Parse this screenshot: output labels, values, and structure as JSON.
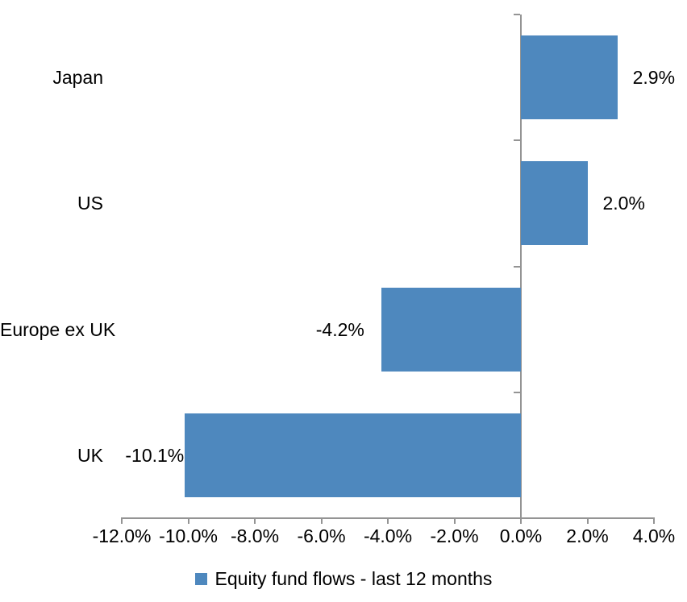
{
  "chart_data": {
    "type": "bar",
    "orientation": "horizontal",
    "categories": [
      "Japan",
      "US",
      "Europe ex UK",
      "UK"
    ],
    "values": [
      2.9,
      2.0,
      -4.2,
      -10.1
    ],
    "data_labels": [
      "2.9%",
      "2.0%",
      "-4.2%",
      "-10.1%"
    ],
    "series": [
      {
        "name": "Equity fund flows - last 12 months",
        "values": [
          2.9,
          2.0,
          -4.2,
          -10.1
        ]
      }
    ],
    "x_ticks": [
      {
        "value": -12,
        "label": "-12.0%"
      },
      {
        "value": -10,
        "label": "-10.0%"
      },
      {
        "value": -8,
        "label": "-8.0%"
      },
      {
        "value": -6,
        "label": "-6.0%"
      },
      {
        "value": -4,
        "label": "-4.0%"
      },
      {
        "value": -2,
        "label": "-2.0%"
      },
      {
        "value": 0,
        "label": "0.0%"
      },
      {
        "value": 2,
        "label": "2.0%"
      },
      {
        "value": 4,
        "label": "4.0%"
      }
    ],
    "xlim": [
      -12,
      4
    ],
    "grid": false,
    "legend": {
      "position": "bottom-center",
      "label": "Equity fund flows - last 12 months"
    },
    "colors": {
      "bar": "#4E88BE",
      "axis": "#949494",
      "text": "#000000",
      "background": "#FFFFFF"
    }
  }
}
